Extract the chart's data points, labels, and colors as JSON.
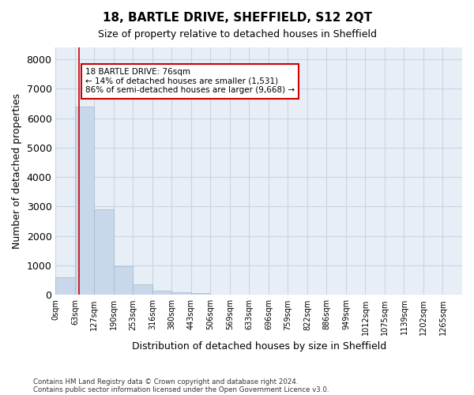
{
  "title": "18, BARTLE DRIVE, SHEFFIELD, S12 2QT",
  "subtitle": "Size of property relative to detached houses in Sheffield",
  "xlabel": "Distribution of detached houses by size in Sheffield",
  "ylabel": "Number of detached properties",
  "footer_line1": "Contains HM Land Registry data © Crown copyright and database right 2024.",
  "footer_line2": "Contains public sector information licensed under the Open Government Licence v3.0.",
  "annotation_title": "18 BARTLE DRIVE: 76sqm",
  "annotation_line2": "← 14% of detached houses are smaller (1,531)",
  "annotation_line3": "86% of semi-detached houses are larger (9,668) →",
  "bar_color": "#c8d8ea",
  "bar_edge_color": "#a0b8cc",
  "grid_color": "#c8d4e4",
  "bg_color": "#e8eef6",
  "vline_color": "#cc0000",
  "annotation_box_color": "#ffffff",
  "annotation_box_edge": "#cc0000",
  "bin_labels": [
    "0sqm",
    "63sqm",
    "127sqm",
    "190sqm",
    "253sqm",
    "316sqm",
    "380sqm",
    "443sqm",
    "506sqm",
    "569sqm",
    "633sqm",
    "696sqm",
    "759sqm",
    "822sqm",
    "886sqm",
    "949sqm",
    "1012sqm",
    "1075sqm",
    "1139sqm",
    "1202sqm",
    "1265sqm"
  ],
  "bar_values": [
    600,
    6380,
    2900,
    960,
    360,
    150,
    80,
    50,
    0,
    0,
    0,
    0,
    0,
    0,
    0,
    0,
    0,
    0,
    0,
    0
  ],
  "property_size": 76,
  "bin_width": 63,
  "ylim": [
    0,
    8400
  ],
  "yticks": [
    0,
    1000,
    2000,
    3000,
    4000,
    5000,
    6000,
    7000,
    8000
  ]
}
